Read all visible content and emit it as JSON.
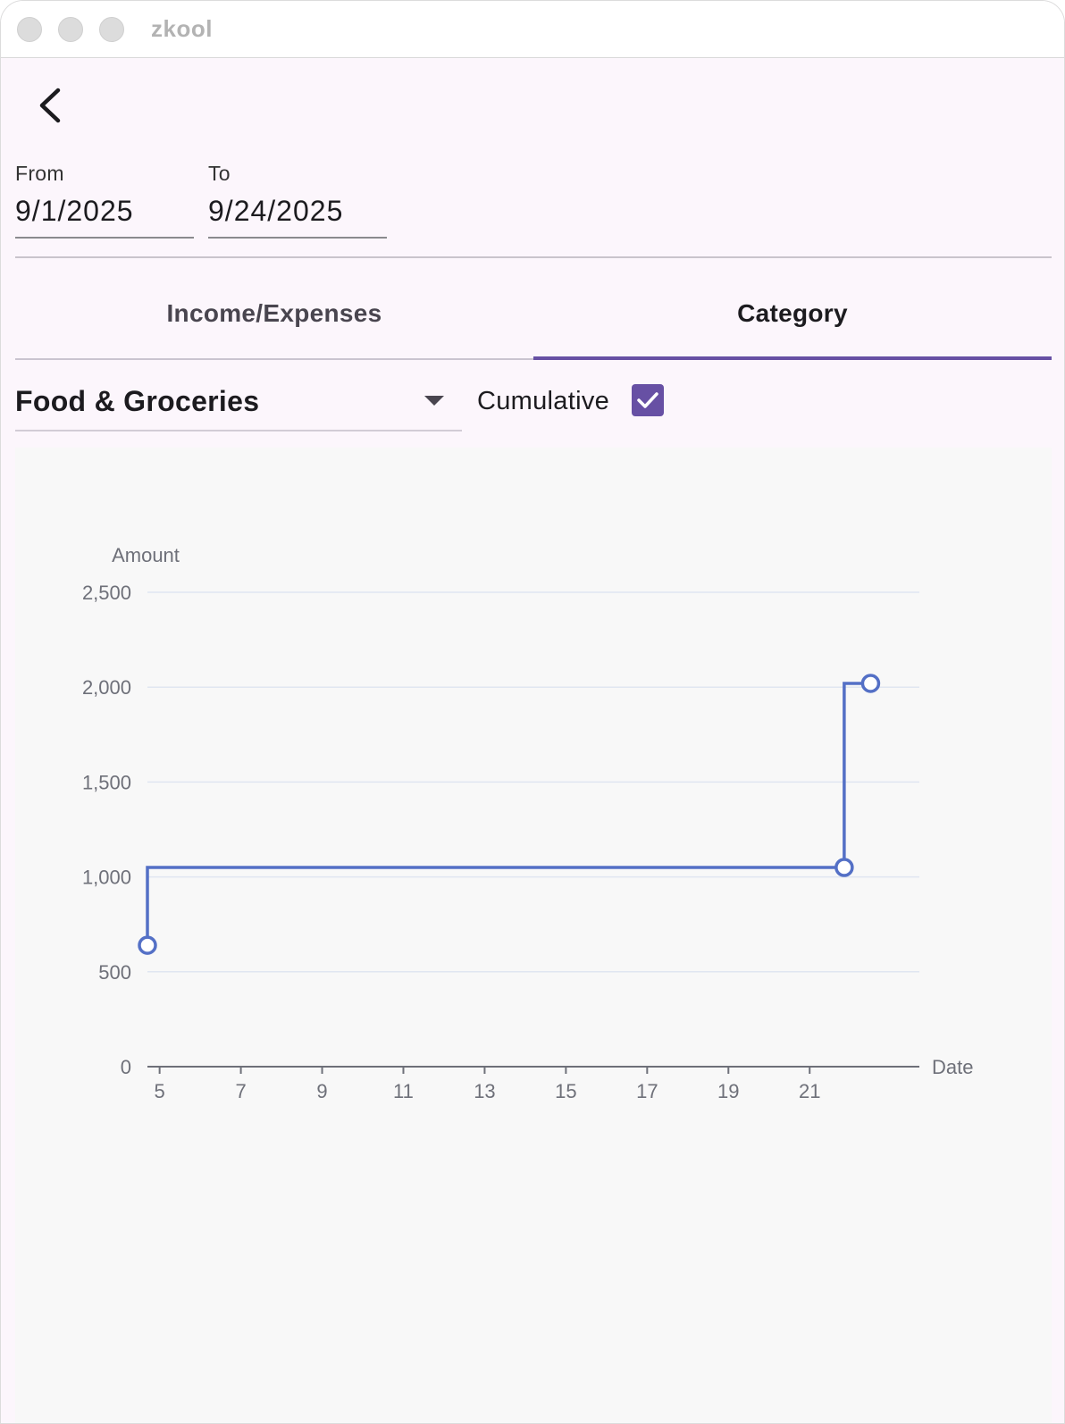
{
  "window": {
    "title": "zkool"
  },
  "filters": {
    "from": {
      "label": "From",
      "value": "9/1/2025"
    },
    "to": {
      "label": "To",
      "value": "9/24/2025"
    }
  },
  "tabs": [
    {
      "label": "Income/Expenses",
      "active": false
    },
    {
      "label": "Category",
      "active": true
    }
  ],
  "category_select": {
    "value": "Food & Groceries"
  },
  "cumulative": {
    "label": "Cumulative",
    "checked": true
  },
  "colors": {
    "accent": "#6750a4",
    "series": "#5470c6"
  },
  "icons": {
    "back": "chevron-left-icon",
    "dropdown": "triangle-down-icon",
    "check": "check-icon"
  },
  "chart_data": {
    "type": "line",
    "step": true,
    "xlabel": "Date",
    "ylabel": "Amount",
    "ylim": [
      0,
      2500
    ],
    "yticks": [
      0,
      500,
      1000,
      1500,
      2000,
      2500
    ],
    "xlim": [
      4.7,
      23.7
    ],
    "xticks": [
      5,
      7,
      9,
      11,
      13,
      15,
      17,
      19,
      21
    ],
    "grid": true,
    "series": [
      {
        "x": [
          4.7,
          21.85,
          22.5
        ],
        "y": [
          640,
          1050,
          2020
        ]
      }
    ]
  }
}
